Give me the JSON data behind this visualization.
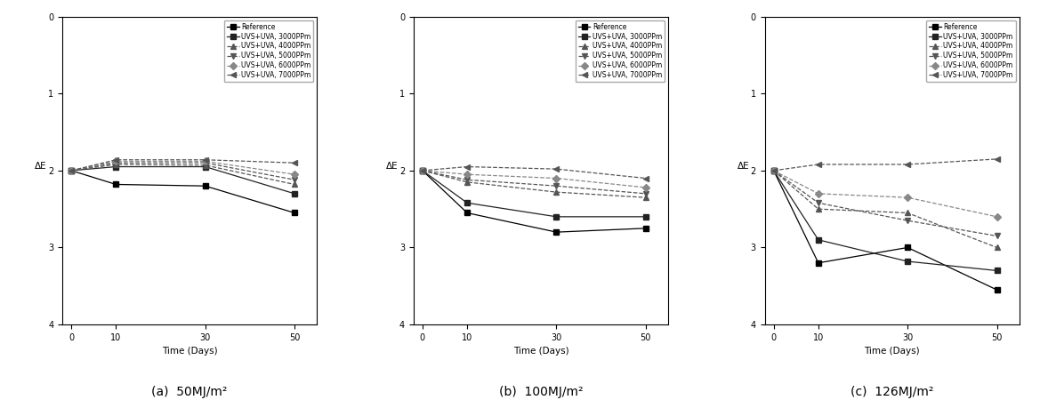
{
  "x": [
    0,
    10,
    30,
    50
  ],
  "series_labels": [
    "Reference",
    "UVS+UVA, 3000PPm",
    "UVS+UVA, 4000PPm",
    "UVS+UVA, 5000PPm",
    "UVS+UVA, 6000PPm",
    "UVS+UVA, 7000PPm"
  ],
  "markers": [
    "s",
    "s",
    "^",
    "v",
    "D",
    "<"
  ],
  "linestyles": [
    "-",
    "-",
    "--",
    "--",
    "--",
    "--"
  ],
  "colors": [
    "#000000",
    "#222222",
    "#555555",
    "#555555",
    "#888888",
    "#555555"
  ],
  "panel_a": {
    "title": "(a)  50MJ/m²",
    "data": [
      [
        2.0,
        2.18,
        2.2,
        2.55
      ],
      [
        2.0,
        1.95,
        1.95,
        2.3
      ],
      [
        2.0,
        1.92,
        1.93,
        2.18
      ],
      [
        2.0,
        1.9,
        1.9,
        2.12
      ],
      [
        2.0,
        1.88,
        1.88,
        2.05
      ],
      [
        2.0,
        1.86,
        1.86,
        1.9
      ]
    ]
  },
  "panel_b": {
    "title": "(b)  100MJ/m²",
    "data": [
      [
        2.0,
        2.55,
        2.8,
        2.75
      ],
      [
        2.0,
        2.42,
        2.6,
        2.6
      ],
      [
        2.0,
        2.15,
        2.28,
        2.35
      ],
      [
        2.0,
        2.12,
        2.2,
        2.3
      ],
      [
        2.0,
        2.05,
        2.1,
        2.22
      ],
      [
        2.0,
        1.95,
        1.98,
        2.1
      ]
    ]
  },
  "panel_c": {
    "title": "(c)  126MJ/m²",
    "data": [
      [
        2.0,
        3.2,
        3.0,
        3.55
      ],
      [
        2.0,
        2.9,
        3.18,
        3.3
      ],
      [
        2.0,
        2.5,
        2.55,
        3.0
      ],
      [
        2.0,
        2.42,
        2.65,
        2.85
      ],
      [
        2.0,
        2.3,
        2.35,
        2.6
      ],
      [
        2.0,
        1.92,
        1.92,
        1.85
      ]
    ]
  },
  "ylim_bottom": 4.0,
  "ylim_top": 0.0,
  "yticks": [
    0,
    1,
    2,
    3,
    4
  ],
  "xticks": [
    0,
    10,
    30,
    50
  ],
  "xlabel": "Time (Days)",
  "ylabel": "ΔE",
  "marker_size": 4,
  "linewidth": 0.9,
  "legend_fontsize": 5.5,
  "axis_fontsize": 7.5,
  "tick_fontsize": 7,
  "figure_bgcolor": "#ffffff"
}
